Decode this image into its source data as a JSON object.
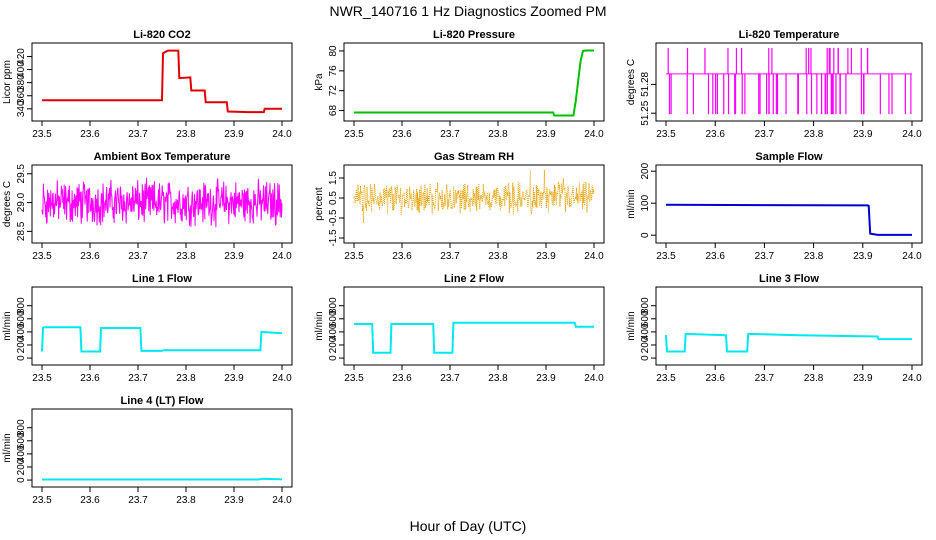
{
  "figure": {
    "title": "NWR_140716  1 Hz Diagnostics Zoomed PM",
    "xlabel": "Hour of Day (UTC)"
  },
  "chart_data": [
    {
      "type": "line",
      "title": "Li-820 CO2",
      "ylabel": "Licor ppm",
      "color": "#e00000",
      "xlim": [
        23.5,
        24.0
      ],
      "ylim": [
        326,
        436
      ],
      "xticks": [
        "23.5",
        "23.6",
        "23.7",
        "23.8",
        "23.9",
        "24.0"
      ],
      "yticks": [
        "340",
        "360",
        "380",
        "400",
        "420"
      ],
      "series": [
        {
          "x": [
            23.5,
            23.75,
            23.752,
            23.762,
            23.784,
            23.786,
            23.809,
            23.811,
            23.839,
            23.841,
            23.885,
            23.887,
            23.93,
            23.962,
            23.964,
            24.0
          ],
          "y": [
            353,
            353,
            425,
            429,
            429,
            387,
            388,
            368,
            368,
            350,
            350,
            336,
            335,
            335,
            340,
            340
          ]
        }
      ]
    },
    {
      "type": "line",
      "title": "Li-820 Pressure",
      "ylabel": "kPa",
      "color": "#00c000",
      "xlim": [
        23.5,
        24.0
      ],
      "ylim": [
        66.5,
        81
      ],
      "xticks": [
        "23.5",
        "23.6",
        "23.7",
        "23.8",
        "23.9",
        "24.0"
      ],
      "yticks": [
        "68",
        "72",
        "76",
        "80"
      ],
      "series": [
        {
          "x": [
            23.5,
            23.915,
            23.917,
            23.957,
            23.962,
            23.967,
            23.972,
            23.977,
            23.982,
            24.0
          ],
          "y": [
            67.6,
            67.6,
            67.0,
            67.0,
            70.0,
            74.0,
            78.0,
            80.0,
            80.1,
            80.1
          ]
        }
      ]
    },
    {
      "type": "line",
      "title": "Li-820 Temperature",
      "ylabel": "degrees C",
      "color": "#ff00ff",
      "xlim": [
        23.5,
        24.0
      ],
      "ylim": [
        51.245,
        51.32
      ],
      "xticks": [
        "23.5",
        "23.6",
        "23.7",
        "23.8",
        "23.9",
        "24.0"
      ],
      "yticks": [
        "51.25",
        "51.28"
      ],
      "series": [
        {
          "x": [
            23.5,
            24.0
          ],
          "y": [
            51.291,
            51.291
          ]
        }
      ]
    },
    {
      "type": "line",
      "title": "Ambient Box Temperature",
      "ylabel": "degrees C",
      "color": "#ff00ff",
      "xlim": [
        23.5,
        24.0
      ],
      "ylim": [
        28.35,
        29.6
      ],
      "xticks": [
        "23.5",
        "23.6",
        "23.7",
        "23.8",
        "23.9",
        "24.0"
      ],
      "yticks": [
        "28.5",
        "29.0",
        "29.5"
      ],
      "series": [
        {
          "x": [
            23.5,
            24.0
          ],
          "y": [
            29.0,
            29.0
          ]
        }
      ]
    },
    {
      "type": "line",
      "title": "Gas Stream RH",
      "ylabel": "percent",
      "color": "#e8a000",
      "xlim": [
        23.5,
        24.0
      ],
      "ylim": [
        -1.6,
        2.0
      ],
      "xticks": [
        "23.5",
        "23.6",
        "23.7",
        "23.8",
        "23.9",
        "24.0"
      ],
      "yticks": [
        "-1.5",
        "-0.5",
        "0.5",
        "1.5"
      ],
      "series": [
        {
          "x": [
            23.5,
            24.0
          ],
          "y": [
            0.5,
            0.5
          ]
        }
      ]
    },
    {
      "type": "line",
      "title": "Sample Flow",
      "ylabel": "ml/min",
      "color": "#0000d0",
      "xlim": [
        23.5,
        24.0
      ],
      "ylim": [
        -15,
        210
      ],
      "xticks": [
        "23.5",
        "23.6",
        "23.7",
        "23.8",
        "23.9",
        "24.0"
      ],
      "yticks": [
        "0",
        "100",
        "200"
      ],
      "series": [
        {
          "x": [
            23.5,
            23.91,
            23.912,
            23.915,
            23.93,
            24.0
          ],
          "y": [
            95,
            93,
            92,
            5,
            1,
            1
          ]
        }
      ]
    },
    {
      "type": "line",
      "title": "Line 1 Flow",
      "ylabel": "ml/min",
      "color": "#00e8f0",
      "xlim": [
        23.5,
        24.0
      ],
      "ylim": [
        -60,
        1040
      ],
      "xticks": [
        "23.5",
        "23.6",
        "23.7",
        "23.8",
        "23.9",
        "24.0"
      ],
      "yticks": [
        "0",
        "200",
        "400",
        "600",
        "800"
      ],
      "series": [
        {
          "x": [
            23.5,
            23.502,
            23.504,
            23.58,
            23.582,
            23.621,
            23.623,
            23.705,
            23.707,
            23.75,
            23.752,
            23.955,
            23.957,
            24.0
          ],
          "y": [
            100,
            460,
            470,
            470,
            100,
            100,
            460,
            460,
            110,
            110,
            120,
            120,
            400,
            380
          ]
        }
      ]
    },
    {
      "type": "line",
      "title": "Line 2 Flow",
      "ylabel": "ml/min",
      "color": "#00e8f0",
      "xlim": [
        23.5,
        24.0
      ],
      "ylim": [
        -60,
        1040
      ],
      "xticks": [
        "23.5",
        "23.6",
        "23.7",
        "23.8",
        "23.9",
        "24.0"
      ],
      "yticks": [
        "0",
        "200",
        "400",
        "600",
        "800"
      ],
      "series": [
        {
          "x": [
            23.5,
            23.538,
            23.54,
            23.576,
            23.578,
            23.665,
            23.667,
            23.705,
            23.707,
            23.96,
            23.962,
            24.0
          ],
          "y": [
            520,
            520,
            80,
            80,
            520,
            520,
            80,
            80,
            540,
            540,
            480,
            480
          ]
        }
      ]
    },
    {
      "type": "line",
      "title": "Line 3 Flow",
      "ylabel": "ml/min",
      "color": "#00e8f0",
      "xlim": [
        23.5,
        24.0
      ],
      "ylim": [
        -60,
        1040
      ],
      "xticks": [
        "23.5",
        "23.6",
        "23.7",
        "23.8",
        "23.9",
        "24.0"
      ],
      "yticks": [
        "0",
        "200",
        "400",
        "600",
        "800"
      ],
      "series": [
        {
          "x": [
            23.5,
            23.502,
            23.504,
            23.538,
            23.54,
            23.622,
            23.624,
            23.665,
            23.667,
            23.77,
            23.93,
            23.932,
            24.0
          ],
          "y": [
            350,
            100,
            100,
            100,
            370,
            350,
            100,
            100,
            370,
            350,
            330,
            290,
            290
          ]
        }
      ]
    },
    {
      "type": "line",
      "title": "Line 4 (LT) Flow",
      "ylabel": "ml/min",
      "color": "#00e8f0",
      "xlim": [
        23.5,
        24.0
      ],
      "ylim": [
        -60,
        1040
      ],
      "xticks": [
        "23.5",
        "23.6",
        "23.7",
        "23.8",
        "23.9",
        "24.0"
      ],
      "yticks": [
        "0",
        "200",
        "400",
        "600",
        "800"
      ],
      "series": [
        {
          "x": [
            23.5,
            23.95,
            23.96,
            24.0
          ],
          "y": [
            8,
            8,
            20,
            10
          ]
        }
      ]
    }
  ]
}
